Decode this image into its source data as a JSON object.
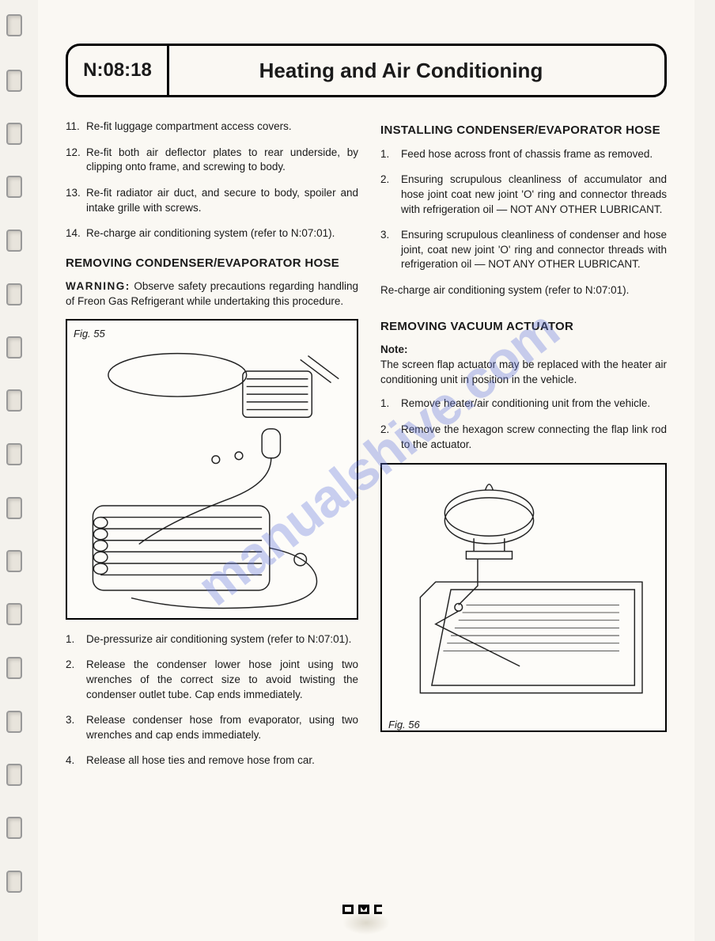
{
  "header": {
    "code": "N:08:18",
    "title": "Heating and Air Conditioning"
  },
  "left": {
    "cont_list": [
      {
        "n": "11.",
        "t": "Re-fit luggage compartment access covers."
      },
      {
        "n": "12.",
        "t": "Re-fit both air deflector plates to rear underside, by clipping onto frame, and screwing to body."
      },
      {
        "n": "13.",
        "t": "Re-fit radiator air duct, and secure to body, spoiler and intake grille with screws."
      },
      {
        "n": "14.",
        "t": "Re-charge air conditioning system (refer to N:07:01)."
      }
    ],
    "sec1_title": "REMOVING CONDENSER/EVAPORATOR HOSE",
    "warning_label": "WARNING:",
    "warning_text": " Observe safety precautions regarding handling of Freon Gas Refrigerant while undertaking this procedure.",
    "fig55_label": "Fig. 55",
    "sec1_list": [
      {
        "n": "1.",
        "t": "De-pressurize air conditioning system (refer to N:07:01)."
      },
      {
        "n": "2.",
        "t": "Release the condenser lower hose joint using two wrenches of the correct size to avoid twisting the condenser outlet tube. Cap ends immediately."
      },
      {
        "n": "3.",
        "t": "Release condenser hose from evaporator, using two wrenches and cap ends immediately."
      },
      {
        "n": "4.",
        "t": "Release all hose ties and remove hose from car."
      }
    ]
  },
  "right": {
    "sec2_title": "INSTALLING CONDENSER/EVAPORATOR HOSE",
    "sec2_list": [
      {
        "n": "1.",
        "t": "Feed hose across front of chassis frame as removed."
      },
      {
        "n": "2.",
        "t": "Ensuring scrupulous cleanliness of accumulator and hose joint coat new joint 'O' ring and connector threads with refrigeration oil — NOT ANY OTHER LUBRICANT."
      },
      {
        "n": "3.",
        "t": "Ensuring scrupulous cleanliness of condenser and hose joint, coat new joint 'O' ring and connector threads with refrigeration oil — NOT ANY OTHER LUBRICANT."
      }
    ],
    "recharge": "Re-charge air conditioning system (refer to N:07:01).",
    "sec3_title": "REMOVING VACUUM ACTUATOR",
    "note_label": "Note:",
    "note_text": "The screen flap actuator may be replaced with the heater air conditioning unit in position in the vehicle.",
    "sec3_list": [
      {
        "n": "1.",
        "t": "Remove heater/air conditioning unit from the vehicle."
      },
      {
        "n": "2.",
        "t": "Remove the hexagon screw connecting the flap link rod to the actuator."
      }
    ],
    "fig56_label": "Fig. 56"
  },
  "watermark": "manualshive.com",
  "footer_logo": "▄▀▄▄▀▄▄▀▄",
  "spiral_holes": [
    18,
    88,
    155,
    222,
    290,
    358,
    425,
    492,
    560,
    628,
    695,
    762,
    830,
    898,
    965,
    1032,
    1100
  ],
  "colors": {
    "page_bg": "#faf8f3",
    "body_bg": "#f4f2ed",
    "text": "#1a1a1a",
    "watermark": "rgba(100,120,220,0.35)"
  }
}
